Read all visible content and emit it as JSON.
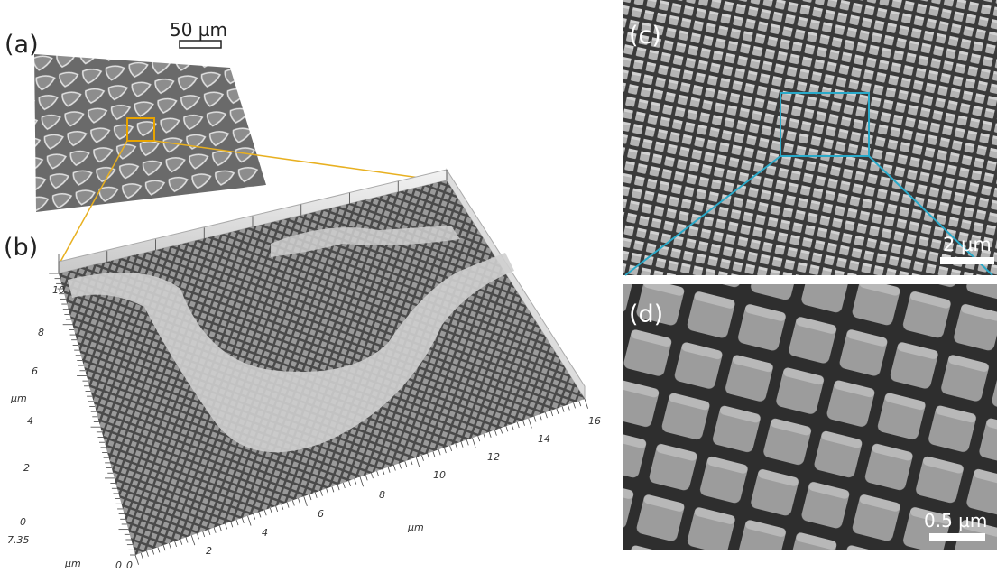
{
  "panels": {
    "a": {
      "label": "(a)",
      "scale_bar": "50 µm"
    },
    "b": {
      "label": "(b)",
      "depth_axis": {
        "ticks": [
          "0",
          "2",
          "4",
          "6",
          "8",
          "10"
        ],
        "unit": "µm"
      },
      "width_axis": {
        "ticks": [
          "0",
          "2",
          "4",
          "6",
          "8",
          "10",
          "12",
          "14",
          "16"
        ],
        "unit": "µm"
      },
      "height_axis": {
        "ticks": [
          "0",
          "7.35"
        ],
        "unit": "µm"
      }
    },
    "c": {
      "label": "(c)",
      "scale_bar": "2 µm"
    },
    "d": {
      "label": "(d)",
      "scale_bar": "0.5 µm"
    }
  }
}
